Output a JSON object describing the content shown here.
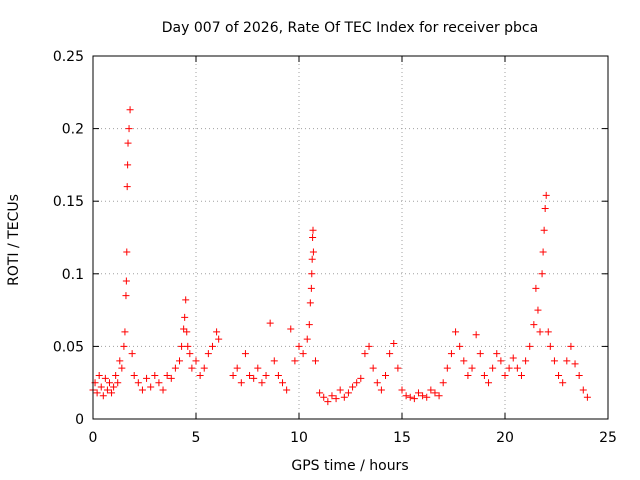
{
  "chart_data": {
    "type": "scatter",
    "title": "Day 007 of 2026, Rate Of TEC Index for receiver pbca",
    "xlabel": "GPS time / hours",
    "ylabel": "ROTI / TECUs",
    "xlim": [
      0,
      25
    ],
    "ylim": [
      0,
      0.25
    ],
    "xticks": [
      "0",
      "5",
      "10",
      "15",
      "20",
      "25"
    ],
    "yticks": [
      "0",
      "0.05",
      "0.1",
      "0.15",
      "0.2",
      "0.25"
    ],
    "grid": true,
    "marker": "plus",
    "series": [
      {
        "name": "ROTI",
        "color": "#ff0000",
        "x": [
          0.0,
          0.1,
          0.2,
          0.3,
          0.4,
          0.5,
          0.6,
          0.7,
          0.8,
          0.9,
          1.0,
          1.1,
          1.2,
          1.3,
          1.4,
          1.5,
          1.55,
          1.6,
          1.62,
          1.64,
          1.66,
          1.68,
          1.7,
          1.75,
          1.8,
          1.9,
          2.0,
          2.2,
          2.4,
          2.6,
          2.8,
          3.0,
          3.2,
          3.4,
          3.6,
          3.8,
          4.0,
          4.2,
          4.3,
          4.4,
          4.45,
          4.5,
          4.55,
          4.6,
          4.7,
          4.8,
          5.0,
          5.2,
          5.4,
          5.6,
          5.8,
          6.0,
          6.1,
          6.8,
          7.0,
          7.2,
          7.4,
          7.6,
          7.8,
          8.0,
          8.2,
          8.4,
          8.6,
          8.8,
          9.0,
          9.2,
          9.4,
          9.6,
          9.8,
          10.0,
          10.2,
          10.4,
          10.5,
          10.55,
          10.6,
          10.62,
          10.64,
          10.66,
          10.68,
          10.7,
          10.8,
          11.0,
          11.2,
          11.4,
          11.6,
          11.8,
          12.0,
          12.2,
          12.4,
          12.6,
          12.8,
          13.0,
          13.2,
          13.4,
          13.6,
          13.8,
          14.0,
          14.2,
          14.4,
          14.6,
          14.8,
          15.0,
          15.2,
          15.4,
          15.6,
          15.8,
          16.0,
          16.2,
          16.4,
          16.6,
          16.8,
          17.0,
          17.2,
          17.4,
          17.6,
          17.8,
          18.0,
          18.2,
          18.4,
          18.6,
          18.8,
          19.0,
          19.2,
          19.4,
          19.6,
          19.8,
          20.0,
          20.2,
          20.4,
          20.6,
          20.8,
          21.0,
          21.2,
          21.4,
          21.5,
          21.6,
          21.7,
          21.8,
          21.85,
          21.9,
          21.95,
          22.0,
          22.1,
          22.2,
          22.4,
          22.6,
          22.8,
          23.0,
          23.2,
          23.4,
          23.6,
          23.8,
          24.0
        ],
        "y": [
          0.02,
          0.025,
          0.018,
          0.03,
          0.022,
          0.016,
          0.028,
          0.02,
          0.025,
          0.018,
          0.022,
          0.03,
          0.025,
          0.04,
          0.035,
          0.05,
          0.06,
          0.085,
          0.095,
          0.115,
          0.16,
          0.175,
          0.19,
          0.2,
          0.213,
          0.045,
          0.03,
          0.025,
          0.02,
          0.028,
          0.022,
          0.03,
          0.025,
          0.02,
          0.03,
          0.028,
          0.035,
          0.04,
          0.05,
          0.062,
          0.07,
          0.082,
          0.06,
          0.05,
          0.045,
          0.035,
          0.04,
          0.03,
          0.035,
          0.045,
          0.05,
          0.06,
          0.055,
          0.03,
          0.035,
          0.025,
          0.045,
          0.03,
          0.028,
          0.035,
          0.025,
          0.03,
          0.066,
          0.04,
          0.03,
          0.025,
          0.02,
          0.062,
          0.04,
          0.05,
          0.045,
          0.055,
          0.065,
          0.08,
          0.09,
          0.1,
          0.11,
          0.125,
          0.13,
          0.115,
          0.04,
          0.018,
          0.015,
          0.012,
          0.016,
          0.014,
          0.02,
          0.015,
          0.018,
          0.022,
          0.025,
          0.028,
          0.045,
          0.05,
          0.035,
          0.025,
          0.02,
          0.03,
          0.045,
          0.052,
          0.035,
          0.02,
          0.016,
          0.015,
          0.014,
          0.018,
          0.016,
          0.015,
          0.02,
          0.018,
          0.016,
          0.025,
          0.035,
          0.045,
          0.06,
          0.05,
          0.04,
          0.03,
          0.035,
          0.058,
          0.045,
          0.03,
          0.025,
          0.035,
          0.045,
          0.04,
          0.03,
          0.035,
          0.042,
          0.035,
          0.03,
          0.04,
          0.05,
          0.065,
          0.09,
          0.075,
          0.06,
          0.1,
          0.115,
          0.13,
          0.145,
          0.154,
          0.06,
          0.05,
          0.04,
          0.03,
          0.025,
          0.04,
          0.05,
          0.038,
          0.03,
          0.02,
          0.015
        ]
      }
    ]
  }
}
